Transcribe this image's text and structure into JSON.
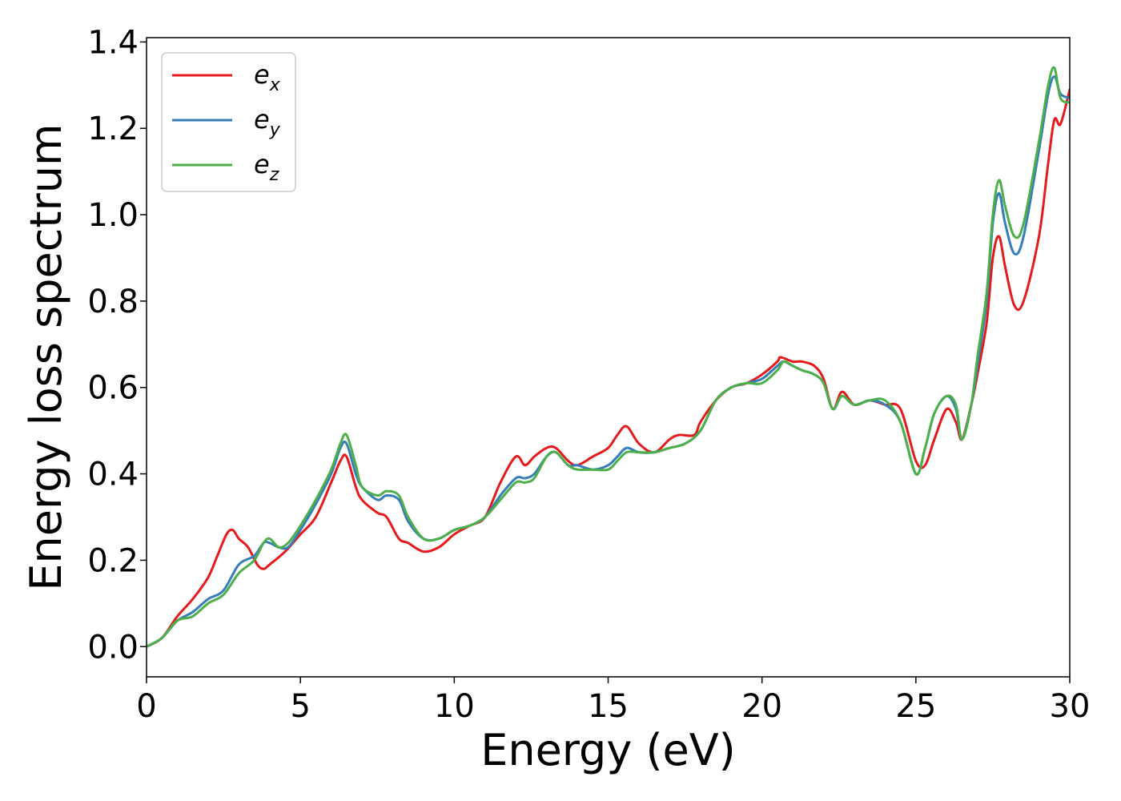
{
  "chart_data": {
    "type": "line",
    "title": "",
    "xlabel": "Energy (eV)",
    "ylabel": "Energy loss spectrum",
    "xlim": [
      0,
      30
    ],
    "ylim": [
      -0.07,
      1.41
    ],
    "xticks": [
      0,
      5,
      10,
      15,
      20,
      25,
      30
    ],
    "xtick_labels": [
      "0",
      "5",
      "10",
      "15",
      "20",
      "25",
      "30"
    ],
    "yticks": [
      0.0,
      0.2,
      0.4,
      0.6,
      0.8,
      1.0,
      1.2,
      1.4
    ],
    "ytick_labels": [
      "0.0",
      "0.2",
      "0.4",
      "0.6",
      "0.8",
      "1.0",
      "1.2",
      "1.4"
    ],
    "grid": false,
    "legend_position": "top-left",
    "series": [
      {
        "name_base": "e",
        "name_sub": "x",
        "color": "#e41a1c",
        "x": [
          0,
          0.5,
          1.0,
          1.5,
          2.0,
          2.3,
          2.6,
          2.8,
          3.0,
          3.3,
          3.6,
          3.8,
          4.0,
          4.5,
          5.0,
          5.5,
          6.0,
          6.3,
          6.5,
          6.8,
          7.0,
          7.5,
          7.8,
          8.2,
          8.5,
          9.0,
          9.5,
          10.0,
          10.5,
          11.0,
          11.5,
          12.0,
          12.3,
          12.6,
          13.0,
          13.3,
          13.7,
          14.0,
          14.5,
          15.0,
          15.3,
          15.6,
          16.0,
          16.5,
          17.0,
          17.3,
          17.8,
          18.0,
          18.5,
          19.0,
          19.5,
          20.0,
          20.5,
          20.6,
          21.0,
          21.3,
          21.7,
          22.0,
          22.3,
          22.6,
          23.0,
          23.5,
          24.0,
          24.5,
          25.0,
          25.3,
          25.6,
          26.0,
          26.3,
          26.5,
          26.8,
          27.0,
          27.3,
          27.5,
          27.7,
          27.9,
          28.2,
          28.5,
          29.0,
          29.3,
          29.5,
          29.7,
          30.0
        ],
        "y": [
          0.0,
          0.02,
          0.07,
          0.11,
          0.16,
          0.21,
          0.26,
          0.27,
          0.25,
          0.23,
          0.19,
          0.18,
          0.19,
          0.22,
          0.26,
          0.3,
          0.38,
          0.43,
          0.44,
          0.37,
          0.34,
          0.31,
          0.3,
          0.25,
          0.24,
          0.22,
          0.23,
          0.26,
          0.28,
          0.3,
          0.38,
          0.44,
          0.42,
          0.44,
          0.46,
          0.46,
          0.43,
          0.42,
          0.44,
          0.46,
          0.49,
          0.51,
          0.47,
          0.45,
          0.48,
          0.49,
          0.49,
          0.52,
          0.57,
          0.6,
          0.61,
          0.63,
          0.66,
          0.67,
          0.66,
          0.66,
          0.65,
          0.62,
          0.55,
          0.59,
          0.56,
          0.57,
          0.56,
          0.55,
          0.43,
          0.42,
          0.48,
          0.55,
          0.52,
          0.48,
          0.56,
          0.63,
          0.75,
          0.9,
          0.95,
          0.88,
          0.79,
          0.8,
          0.95,
          1.12,
          1.22,
          1.21,
          1.29
        ]
      },
      {
        "name_base": "e",
        "name_sub": "y",
        "color": "#377eb8",
        "x": [
          0,
          0.5,
          1.0,
          1.5,
          2.0,
          2.5,
          3.0,
          3.5,
          3.8,
          4.0,
          4.3,
          4.6,
          5.0,
          5.5,
          6.0,
          6.3,
          6.5,
          6.8,
          7.0,
          7.5,
          7.8,
          8.2,
          8.5,
          9.0,
          9.5,
          10.0,
          10.5,
          11.0,
          11.5,
          12.0,
          12.3,
          12.6,
          13.0,
          13.3,
          13.7,
          14.0,
          14.5,
          15.0,
          15.3,
          15.6,
          16.0,
          16.5,
          17.0,
          17.5,
          18.0,
          18.5,
          19.0,
          19.5,
          20.0,
          20.5,
          20.7,
          21.0,
          21.3,
          21.7,
          22.0,
          22.3,
          22.6,
          23.0,
          23.5,
          24.0,
          24.5,
          25.0,
          25.3,
          25.6,
          26.0,
          26.3,
          26.5,
          26.8,
          27.0,
          27.3,
          27.5,
          27.7,
          27.9,
          28.2,
          28.5,
          29.0,
          29.3,
          29.5,
          29.7,
          30.0
        ],
        "y": [
          0.0,
          0.02,
          0.06,
          0.08,
          0.11,
          0.13,
          0.19,
          0.21,
          0.24,
          0.24,
          0.23,
          0.23,
          0.27,
          0.33,
          0.4,
          0.46,
          0.47,
          0.4,
          0.37,
          0.34,
          0.35,
          0.34,
          0.29,
          0.25,
          0.25,
          0.27,
          0.28,
          0.3,
          0.35,
          0.39,
          0.39,
          0.4,
          0.44,
          0.45,
          0.42,
          0.42,
          0.41,
          0.42,
          0.44,
          0.46,
          0.45,
          0.45,
          0.46,
          0.47,
          0.5,
          0.57,
          0.6,
          0.61,
          0.62,
          0.65,
          0.66,
          0.65,
          0.64,
          0.63,
          0.61,
          0.55,
          0.58,
          0.56,
          0.57,
          0.56,
          0.52,
          0.4,
          0.46,
          0.54,
          0.58,
          0.55,
          0.48,
          0.56,
          0.65,
          0.8,
          0.98,
          1.05,
          0.98,
          0.91,
          0.95,
          1.15,
          1.28,
          1.32,
          1.28,
          1.27
        ]
      },
      {
        "name_base": "e",
        "name_sub": "z",
        "color": "#4daf4a",
        "x": [
          0,
          0.5,
          1.0,
          1.5,
          2.0,
          2.5,
          3.0,
          3.5,
          3.8,
          4.0,
          4.3,
          4.6,
          5.0,
          5.5,
          6.0,
          6.3,
          6.5,
          6.8,
          7.0,
          7.5,
          7.8,
          8.2,
          8.5,
          9.0,
          9.5,
          10.0,
          10.5,
          11.0,
          11.5,
          12.0,
          12.3,
          12.6,
          13.0,
          13.3,
          13.7,
          14.0,
          14.5,
          15.0,
          15.3,
          15.6,
          16.0,
          16.5,
          17.0,
          17.5,
          18.0,
          18.5,
          19.0,
          19.5,
          20.0,
          20.5,
          20.7,
          21.0,
          21.3,
          21.7,
          22.0,
          22.3,
          22.6,
          23.0,
          23.5,
          24.0,
          24.5,
          25.0,
          25.3,
          25.6,
          26.0,
          26.3,
          26.5,
          26.8,
          27.0,
          27.3,
          27.5,
          27.7,
          27.9,
          28.2,
          28.5,
          29.0,
          29.3,
          29.5,
          29.7,
          30.0
        ],
        "y": [
          0.0,
          0.02,
          0.06,
          0.07,
          0.1,
          0.12,
          0.17,
          0.2,
          0.24,
          0.25,
          0.23,
          0.24,
          0.28,
          0.34,
          0.41,
          0.47,
          0.49,
          0.42,
          0.37,
          0.35,
          0.36,
          0.35,
          0.3,
          0.25,
          0.25,
          0.27,
          0.28,
          0.3,
          0.34,
          0.38,
          0.38,
          0.39,
          0.44,
          0.45,
          0.42,
          0.41,
          0.41,
          0.41,
          0.43,
          0.45,
          0.45,
          0.45,
          0.46,
          0.47,
          0.5,
          0.57,
          0.6,
          0.61,
          0.61,
          0.64,
          0.66,
          0.65,
          0.64,
          0.63,
          0.61,
          0.55,
          0.58,
          0.56,
          0.57,
          0.57,
          0.52,
          0.4,
          0.46,
          0.54,
          0.58,
          0.56,
          0.48,
          0.56,
          0.67,
          0.82,
          1.0,
          1.08,
          1.02,
          0.95,
          0.98,
          1.17,
          1.3,
          1.34,
          1.27,
          1.26
        ]
      }
    ]
  }
}
